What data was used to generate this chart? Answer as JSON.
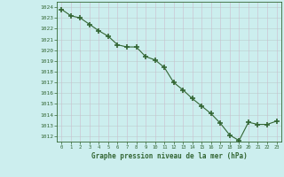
{
  "x": [
    0,
    1,
    2,
    3,
    4,
    5,
    6,
    7,
    8,
    9,
    10,
    11,
    12,
    13,
    14,
    15,
    16,
    17,
    18,
    19,
    20,
    21,
    22,
    23
  ],
  "y": [
    1023.8,
    1023.2,
    1023.0,
    1022.4,
    1021.8,
    1021.3,
    1020.5,
    1020.3,
    1020.3,
    1019.4,
    1019.1,
    1018.4,
    1017.0,
    1016.3,
    1015.5,
    1014.8,
    1014.1,
    1013.2,
    1012.1,
    1011.6,
    1013.3,
    1013.1,
    1013.1,
    1013.4
  ],
  "line_color": "#336633",
  "marker_color": "#336633",
  "bg_color": "#cceeee",
  "grid_color_h": "#bbcccc",
  "grid_color_v": "#ccbbcc",
  "axis_label_color": "#336633",
  "tick_label_color": "#336633",
  "xlabel": "Graphe pression niveau de la mer (hPa)",
  "ylim_min": 1011.5,
  "ylim_max": 1024.5,
  "xlim_min": -0.5,
  "xlim_max": 23.5
}
